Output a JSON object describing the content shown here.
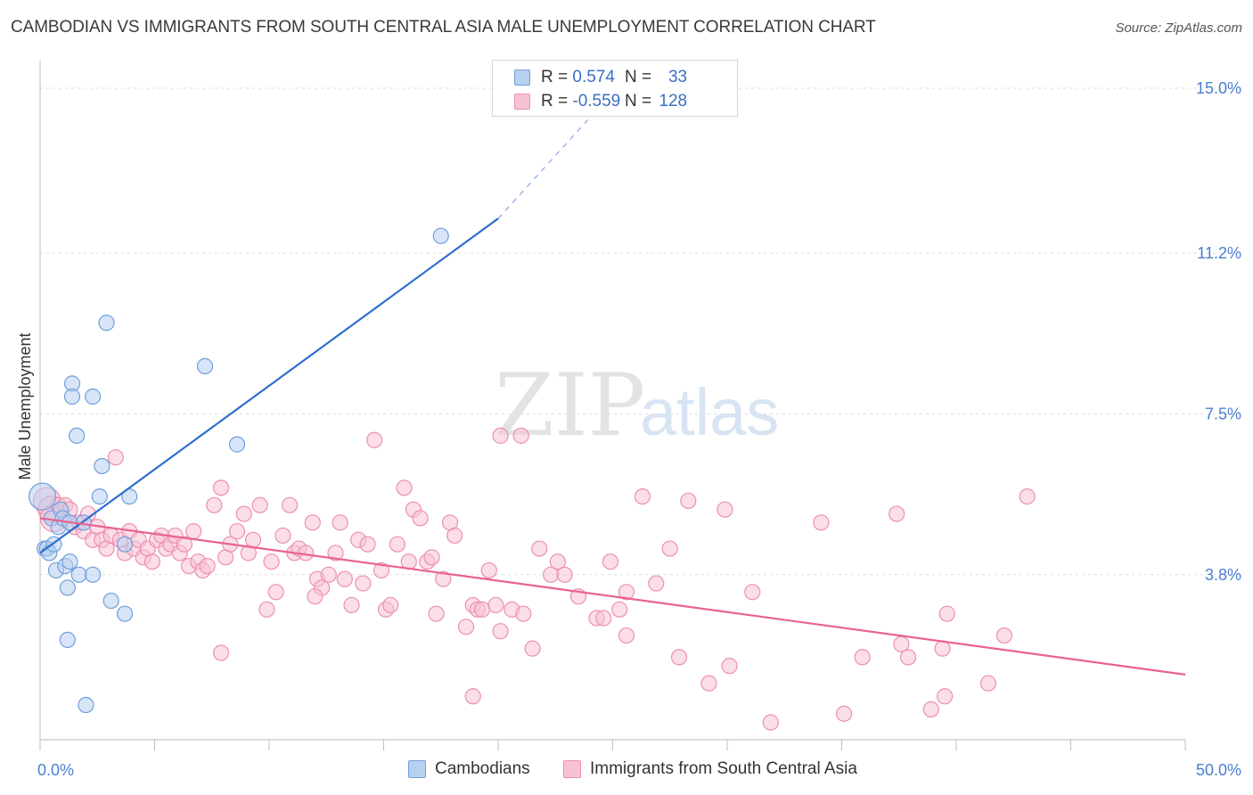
{
  "title": "CAMBODIAN VS IMMIGRANTS FROM SOUTH CENTRAL ASIA MALE UNEMPLOYMENT CORRELATION CHART",
  "source": "Source: ZipAtlas.com",
  "watermark": {
    "zip": "ZIP",
    "atlas": "atlas"
  },
  "legend_top": {
    "rows": [
      {
        "r_label": "R = ",
        "r_value": "0.574",
        "n_label": "N = ",
        "n_value": "33"
      },
      {
        "r_label": "R = ",
        "r_value": "-0.559",
        "n_label": "N = ",
        "n_value": "128"
      }
    ]
  },
  "legend_bottom": {
    "series1": "Cambodians",
    "series2": "Immigrants from South Central Asia"
  },
  "colors": {
    "blue_fill": "#b8d0f0",
    "blue_stroke": "#6f9fdc",
    "blue_line": "#2f6fd0",
    "pink_fill": "#f7c3d3",
    "pink_stroke": "#ec90ae",
    "pink_line": "#e8638f",
    "axis_text": "#4a7fcf",
    "grid": "#dcdcdc"
  },
  "chart_data": {
    "type": "scatter",
    "title": "CAMBODIAN VS IMMIGRANTS FROM SOUTH CENTRAL ASIA MALE UNEMPLOYMENT CORRELATION CHART",
    "xlabel": "",
    "ylabel": "Male Unemployment",
    "xlim": [
      0,
      50
    ],
    "ylim": [
      0,
      15.8
    ],
    "x_tick_labels": [
      "0.0%",
      "50.0%"
    ],
    "y_ticks": [
      3.8,
      7.5,
      11.2,
      15.0
    ],
    "y_tick_labels": [
      "3.8%",
      "7.5%",
      "11.2%",
      "15.0%"
    ],
    "grid": true,
    "legend_position": "top-center",
    "series": [
      {
        "name": "Cambodians",
        "r": 0.574,
        "n": 33,
        "trend": {
          "x0": 0.0,
          "y0": 4.3,
          "x1": 20.0,
          "y1": 12.0,
          "dash_to_x": 25.0,
          "dash_to_y": 14.9
        },
        "points": [
          [
            0.1,
            5.6,
            2
          ],
          [
            0.2,
            4.4,
            1
          ],
          [
            0.3,
            4.4,
            1
          ],
          [
            0.4,
            4.3,
            1
          ],
          [
            0.5,
            5.1,
            1
          ],
          [
            0.6,
            4.5,
            1
          ],
          [
            0.7,
            3.9,
            1
          ],
          [
            0.8,
            4.9,
            1
          ],
          [
            0.9,
            5.3,
            1
          ],
          [
            1.0,
            5.1,
            1
          ],
          [
            1.1,
            4.0,
            1
          ],
          [
            1.2,
            3.5,
            1
          ],
          [
            1.3,
            4.1,
            1
          ],
          [
            1.2,
            2.3,
            1
          ],
          [
            1.3,
            5.0,
            1
          ],
          [
            1.4,
            8.2,
            1
          ],
          [
            1.4,
            7.9,
            1
          ],
          [
            1.6,
            7.0,
            1
          ],
          [
            1.7,
            3.8,
            1
          ],
          [
            1.9,
            5.0,
            1
          ],
          [
            2.0,
            0.8,
            1
          ],
          [
            2.3,
            3.8,
            1
          ],
          [
            2.3,
            7.9,
            1
          ],
          [
            2.6,
            5.6,
            1
          ],
          [
            2.7,
            6.3,
            1
          ],
          [
            2.9,
            9.6,
            1
          ],
          [
            3.1,
            3.2,
            1
          ],
          [
            3.7,
            2.9,
            1
          ],
          [
            3.9,
            5.6,
            1
          ],
          [
            3.7,
            4.5,
            1
          ],
          [
            7.2,
            8.6,
            1
          ],
          [
            8.6,
            6.8,
            1
          ],
          [
            17.5,
            11.6,
            1
          ]
        ]
      },
      {
        "name": "Immigrants from South Central Asia",
        "r": -0.559,
        "n": 128,
        "trend": {
          "x0": 0.0,
          "y0": 5.1,
          "x1": 50.0,
          "y1": 1.5
        },
        "points": [
          [
            0.3,
            5.5,
            2
          ],
          [
            0.5,
            5.3,
            2
          ],
          [
            0.6,
            5.1,
            2
          ],
          [
            0.8,
            5.4,
            1
          ],
          [
            1.1,
            5.4,
            1
          ],
          [
            1.3,
            5.3,
            1
          ],
          [
            1.5,
            4.9,
            1
          ],
          [
            1.7,
            5.0,
            1
          ],
          [
            1.9,
            4.8,
            1
          ],
          [
            2.1,
            5.2,
            1
          ],
          [
            2.3,
            4.6,
            1
          ],
          [
            2.5,
            4.9,
            1
          ],
          [
            2.7,
            4.6,
            1
          ],
          [
            2.9,
            4.4,
            1
          ],
          [
            3.1,
            4.7,
            1
          ],
          [
            3.3,
            6.5,
            1
          ],
          [
            3.5,
            4.6,
            1
          ],
          [
            3.7,
            4.3,
            1
          ],
          [
            3.9,
            4.8,
            1
          ],
          [
            4.1,
            4.4,
            1
          ],
          [
            4.3,
            4.6,
            1
          ],
          [
            4.5,
            4.2,
            1
          ],
          [
            4.7,
            4.4,
            1
          ],
          [
            4.9,
            4.1,
            1
          ],
          [
            5.1,
            4.6,
            1
          ],
          [
            5.3,
            4.7,
            1
          ],
          [
            5.5,
            4.4,
            1
          ],
          [
            5.7,
            4.5,
            1
          ],
          [
            5.9,
            4.7,
            1
          ],
          [
            6.1,
            4.3,
            1
          ],
          [
            6.3,
            4.5,
            1
          ],
          [
            6.5,
            4.0,
            1
          ],
          [
            6.7,
            4.8,
            1
          ],
          [
            6.9,
            4.1,
            1
          ],
          [
            7.1,
            3.9,
            1
          ],
          [
            7.3,
            4.0,
            1
          ],
          [
            7.6,
            5.4,
            1
          ],
          [
            7.9,
            5.8,
            1
          ],
          [
            8.1,
            4.2,
            1
          ],
          [
            8.3,
            4.5,
            1
          ],
          [
            8.6,
            4.8,
            1
          ],
          [
            8.9,
            5.2,
            1
          ],
          [
            9.1,
            4.3,
            1
          ],
          [
            9.3,
            4.6,
            1
          ],
          [
            9.6,
            5.4,
            1
          ],
          [
            9.9,
            3.0,
            1
          ],
          [
            10.1,
            4.1,
            1
          ],
          [
            10.3,
            3.4,
            1
          ],
          [
            10.6,
            4.7,
            1
          ],
          [
            10.9,
            5.4,
            1
          ],
          [
            11.1,
            4.3,
            1
          ],
          [
            11.3,
            4.4,
            1
          ],
          [
            11.6,
            4.3,
            1
          ],
          [
            11.9,
            5.0,
            1
          ],
          [
            12.1,
            3.7,
            1
          ],
          [
            12.3,
            3.5,
            1
          ],
          [
            12.6,
            3.8,
            1
          ],
          [
            12.9,
            4.3,
            1
          ],
          [
            13.1,
            5.0,
            1
          ],
          [
            13.3,
            3.7,
            1
          ],
          [
            13.6,
            3.1,
            1
          ],
          [
            13.9,
            4.6,
            1
          ],
          [
            14.1,
            3.6,
            1
          ],
          [
            14.3,
            4.5,
            1
          ],
          [
            14.6,
            6.9,
            1
          ],
          [
            14.9,
            3.9,
            1
          ],
          [
            15.1,
            3.0,
            1
          ],
          [
            15.3,
            3.1,
            1
          ],
          [
            15.6,
            4.5,
            1
          ],
          [
            15.9,
            5.8,
            1
          ],
          [
            16.1,
            4.1,
            1
          ],
          [
            16.3,
            5.3,
            1
          ],
          [
            16.6,
            5.1,
            1
          ],
          [
            16.9,
            4.1,
            1
          ],
          [
            17.1,
            4.2,
            1
          ],
          [
            17.3,
            2.9,
            1
          ],
          [
            17.6,
            3.7,
            1
          ],
          [
            17.9,
            5.0,
            1
          ],
          [
            18.1,
            4.7,
            1
          ],
          [
            18.6,
            2.6,
            1
          ],
          [
            18.9,
            3.1,
            1
          ],
          [
            19.1,
            3.0,
            1
          ],
          [
            19.3,
            3.0,
            1
          ],
          [
            19.6,
            3.9,
            1
          ],
          [
            19.9,
            3.1,
            1
          ],
          [
            20.1,
            2.5,
            1
          ],
          [
            20.6,
            3.0,
            1
          ],
          [
            21.1,
            2.9,
            1
          ],
          [
            21.5,
            2.1,
            1
          ],
          [
            21.8,
            4.4,
            1
          ],
          [
            22.3,
            3.8,
            1
          ],
          [
            22.6,
            4.1,
            1
          ],
          [
            22.9,
            3.8,
            1
          ],
          [
            23.5,
            3.3,
            1
          ],
          [
            24.3,
            2.8,
            1
          ],
          [
            24.6,
            2.8,
            1
          ],
          [
            24.9,
            4.1,
            1
          ],
          [
            25.3,
            3.0,
            1
          ],
          [
            25.6,
            3.4,
            1
          ],
          [
            25.6,
            2.4,
            1
          ],
          [
            26.3,
            5.6,
            1
          ],
          [
            26.9,
            3.6,
            1
          ],
          [
            27.5,
            4.4,
            1
          ],
          [
            27.9,
            1.9,
            1
          ],
          [
            28.3,
            5.5,
            1
          ],
          [
            29.2,
            1.3,
            1
          ],
          [
            29.9,
            5.3,
            1
          ],
          [
            30.1,
            1.7,
            1
          ],
          [
            31.1,
            3.4,
            1
          ],
          [
            31.9,
            0.4,
            1
          ],
          [
            34.1,
            5.0,
            1
          ],
          [
            35.1,
            0.6,
            1
          ],
          [
            35.9,
            1.9,
            1
          ],
          [
            37.4,
            5.2,
            1
          ],
          [
            37.6,
            2.2,
            1
          ],
          [
            37.9,
            1.9,
            1
          ],
          [
            38.9,
            0.7,
            1
          ],
          [
            39.4,
            2.1,
            1
          ],
          [
            39.5,
            1.0,
            1
          ],
          [
            39.6,
            2.9,
            1
          ],
          [
            41.4,
            1.3,
            1
          ],
          [
            42.1,
            2.4,
            1
          ],
          [
            43.1,
            5.6,
            1
          ],
          [
            18.9,
            1.0,
            1
          ],
          [
            20.1,
            7.0,
            1
          ],
          [
            21.0,
            7.0,
            1
          ],
          [
            7.9,
            2.0,
            1
          ],
          [
            12.0,
            3.3,
            1
          ]
        ]
      }
    ]
  }
}
